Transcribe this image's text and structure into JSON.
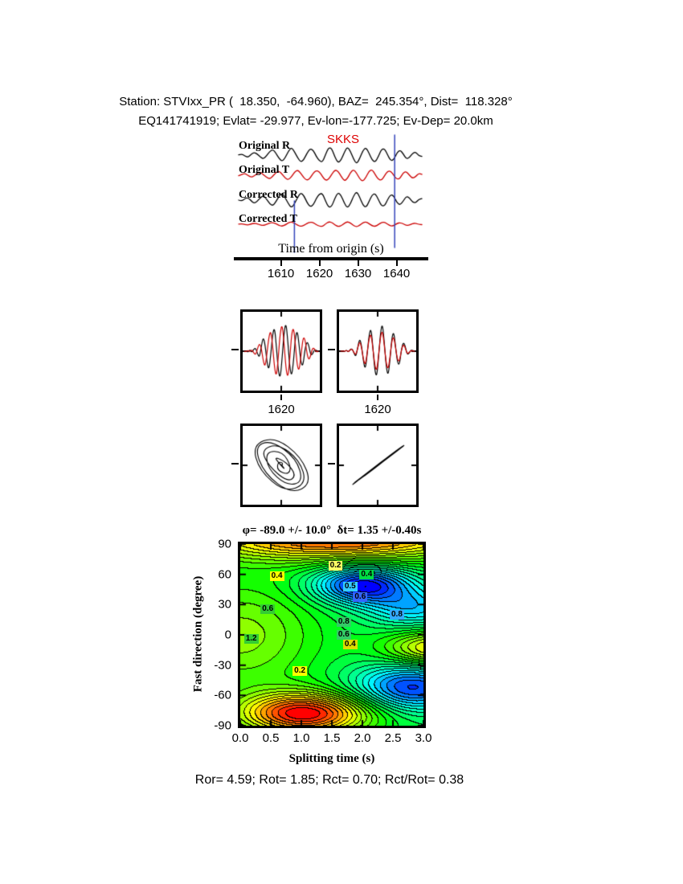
{
  "header": {
    "line1": "Station: STVIxx_PR (  18.350,  -64.960), BAZ=  245.354°, Dist=  118.328°",
    "line2": "EQ141741919; Evlat= -29.977, Ev-lon=-177.725; Ev-Dep= 20.0km"
  },
  "waveform_panel": {
    "phase_label": "SKKS",
    "trace_labels": [
      "Original R",
      "Original T",
      "Corrected R",
      "Corrected T"
    ],
    "xlabel": "Time from origin (s)",
    "xticks": [
      1610,
      1620,
      1630,
      1640
    ],
    "x_range": [
      1598,
      1648
    ],
    "window": [
      1613.5,
      1639.5
    ],
    "colors": {
      "r": "#000000",
      "t": "#cc0000",
      "window": "#3344bb"
    },
    "traces": {
      "original_r": [
        0.02,
        0.1,
        -0.06,
        -0.18,
        0.05,
        0.22,
        0.08,
        -0.15,
        -0.3,
        -0.05,
        0.28,
        0.45,
        0.15,
        -0.25,
        -0.5,
        -0.2,
        0.3,
        0.6,
        0.25,
        -0.2,
        -0.55,
        -0.35,
        0.15,
        0.5,
        0.4,
        -0.1,
        -0.45,
        -0.55,
        0.05,
        0.6,
        0.5,
        -0.15,
        -0.6,
        -0.4,
        0.2,
        0.65,
        0.3,
        -0.3,
        -0.7,
        -0.25,
        0.35,
        0.6,
        0.15,
        -0.4,
        -0.55,
        -0.1,
        0.45,
        0.5,
        0.0,
        -0.45,
        -0.35,
        0.2,
        0.4,
        0.1,
        -0.3,
        -0.2,
        0.15,
        0.25,
        -0.05,
        -0.1
      ],
      "original_t": [
        -0.05,
        0.08,
        0.18,
        -0.02,
        -0.2,
        -0.08,
        0.15,
        0.3,
        0.05,
        -0.22,
        -0.35,
        -0.1,
        0.25,
        0.4,
        0.1,
        -0.28,
        -0.45,
        -0.15,
        0.3,
        0.5,
        0.2,
        -0.25,
        -0.5,
        -0.3,
        0.2,
        0.45,
        0.35,
        -0.15,
        -0.5,
        -0.4,
        0.1,
        0.5,
        0.4,
        -0.1,
        -0.55,
        -0.35,
        0.25,
        0.55,
        0.2,
        -0.35,
        -0.6,
        -0.2,
        0.4,
        0.55,
        0.05,
        -0.4,
        -0.5,
        -0.05,
        0.4,
        0.4,
        -0.05,
        -0.4,
        -0.3,
        0.25,
        0.35,
        0.0,
        -0.3,
        -0.15,
        0.18,
        0.08
      ],
      "corrected_r": [
        0.0,
        -0.08,
        0.12,
        0.2,
        -0.05,
        -0.25,
        -0.1,
        0.2,
        0.35,
        0.08,
        -0.28,
        -0.45,
        -0.12,
        0.3,
        0.55,
        0.18,
        -0.28,
        -0.6,
        -0.28,
        0.22,
        0.58,
        0.35,
        -0.18,
        -0.52,
        -0.4,
        0.12,
        0.48,
        0.52,
        -0.08,
        -0.58,
        -0.48,
        0.15,
        0.6,
        0.38,
        -0.22,
        -0.62,
        -0.3,
        0.32,
        0.68,
        0.22,
        -0.38,
        -0.58,
        -0.12,
        0.42,
        0.52,
        0.05,
        -0.45,
        -0.45,
        0.05,
        0.45,
        0.32,
        -0.22,
        -0.38,
        -0.08,
        0.3,
        0.18,
        -0.15,
        -0.22,
        0.06,
        0.12
      ],
      "corrected_t": [
        0.02,
        0.06,
        -0.04,
        -0.1,
        0.03,
        0.12,
        0.05,
        -0.1,
        -0.16,
        -0.02,
        0.14,
        0.22,
        0.06,
        -0.14,
        -0.26,
        -0.08,
        0.16,
        0.3,
        0.12,
        -0.12,
        -0.28,
        -0.16,
        0.1,
        0.26,
        0.2,
        -0.06,
        -0.24,
        -0.28,
        0.04,
        0.3,
        0.24,
        -0.08,
        -0.3,
        -0.2,
        0.1,
        0.32,
        0.16,
        -0.16,
        -0.34,
        -0.12,
        0.18,
        0.3,
        0.08,
        -0.2,
        -0.28,
        -0.04,
        0.22,
        0.26,
        0.0,
        -0.22,
        -0.18,
        0.1,
        0.2,
        0.05,
        -0.16,
        -0.1,
        0.08,
        0.12,
        -0.02,
        -0.05
      ]
    }
  },
  "zoom_panels": [
    {
      "tick_label": "1620",
      "r": [
        0.0,
        0.02,
        -0.03,
        0.05,
        -0.04,
        0.06,
        0.1,
        -0.08,
        -0.2,
        0.15,
        0.45,
        0.2,
        -0.35,
        -0.6,
        -0.1,
        0.55,
        0.75,
        0.1,
        -0.65,
        -0.85,
        -0.2,
        0.6,
        0.9,
        0.3,
        -0.5,
        -0.8,
        -0.3,
        0.45,
        0.65,
        0.15,
        -0.4,
        -0.45,
        0.05,
        0.3,
        0.2,
        -0.12,
        -0.1,
        0.05,
        0.02,
        0.0
      ],
      "t": [
        0.0,
        -0.02,
        0.03,
        -0.02,
        0.05,
        -0.05,
        -0.12,
        0.08,
        0.25,
        0.1,
        -0.3,
        -0.5,
        -0.05,
        0.45,
        0.65,
        0.15,
        -0.55,
        -0.8,
        -0.15,
        0.6,
        0.85,
        0.25,
        -0.55,
        -0.85,
        -0.25,
        0.55,
        0.75,
        0.2,
        -0.5,
        -0.6,
        -0.1,
        0.42,
        0.4,
        -0.05,
        -0.28,
        -0.15,
        0.1,
        0.08,
        -0.03,
        0.0
      ]
    },
    {
      "tick_label": "1620",
      "r": [
        0.0,
        0.01,
        -0.02,
        0.04,
        -0.03,
        0.05,
        0.08,
        -0.06,
        -0.18,
        0.12,
        0.4,
        0.18,
        -0.32,
        -0.58,
        -0.08,
        0.52,
        0.72,
        0.12,
        -0.6,
        -0.82,
        -0.18,
        0.58,
        0.88,
        0.28,
        -0.48,
        -0.78,
        -0.28,
        0.42,
        0.62,
        0.12,
        -0.38,
        -0.42,
        0.04,
        0.28,
        0.18,
        -0.1,
        -0.08,
        0.04,
        0.02,
        0.0
      ],
      "t": [
        0.0,
        0.01,
        -0.01,
        0.03,
        -0.02,
        0.04,
        0.07,
        -0.05,
        -0.12,
        0.1,
        0.32,
        0.12,
        -0.26,
        -0.45,
        -0.04,
        0.4,
        0.56,
        0.08,
        -0.44,
        -0.64,
        -0.12,
        0.46,
        0.66,
        0.2,
        -0.38,
        -0.58,
        -0.2,
        0.34,
        0.46,
        0.08,
        -0.28,
        -0.32,
        0.02,
        0.22,
        0.12,
        -0.08,
        -0.05,
        0.02,
        0.01,
        0.0
      ]
    }
  ],
  "chart_data": {
    "type": "heatmap",
    "title": "φ= -89.0 +/- 10.0°  δt= 1.35 +/-0.40s",
    "xlabel": "Splitting time (s)",
    "ylabel": "Fast direction (degree)",
    "xlim": [
      0,
      3
    ],
    "ylim": [
      -90,
      90
    ],
    "xticks": [
      "0.0",
      "0.5",
      "1.0",
      "1.5",
      "2.0",
      "2.5",
      "3.0"
    ],
    "yticks": [
      90,
      60,
      30,
      0,
      -30,
      -60,
      -90
    ],
    "levels": 26,
    "phi_deg": -89.0,
    "phi_err_deg": 10.0,
    "dt_s": 1.35,
    "dt_err_s": 0.4,
    "surface_model": {
      "base": 1.0,
      "gaussians": [
        {
          "a": 3.2,
          "x": 1.6,
          "y": 97,
          "sx": 1.7,
          "sy": 16
        },
        {
          "a": 3.6,
          "x": 1.05,
          "y": -78,
          "sx": 0.75,
          "sy": 15
        },
        {
          "a": -2.8,
          "x": 2.0,
          "y": 50,
          "sx": 0.55,
          "sy": 13
        },
        {
          "a": -1.4,
          "x": 2.85,
          "y": 27,
          "sx": 0.55,
          "sy": 13
        },
        {
          "a": -2.4,
          "x": 2.8,
          "y": -52,
          "sx": 0.65,
          "sy": 16
        },
        {
          "a": 2.2,
          "x": 3.25,
          "y": -13,
          "sx": 0.6,
          "sy": 12
        },
        {
          "a": 1.3,
          "x": 0.0,
          "y": 0,
          "sx": 0.9,
          "sy": 40
        }
      ]
    },
    "contour_labels": [
      {
        "text": "0.2",
        "fx": 0.52,
        "fy": 0.12,
        "bg": "#ffff66"
      },
      {
        "text": "0.4",
        "fx": 0.2,
        "fy": 0.175,
        "bg": "#ffff00"
      },
      {
        "text": "0.4",
        "fx": 0.69,
        "fy": 0.17,
        "bg": "#00dd44"
      },
      {
        "text": "0.5",
        "fx": 0.6,
        "fy": 0.235,
        "bg": "#33ccff"
      },
      {
        "text": "0.6",
        "fx": 0.655,
        "fy": 0.29,
        "bg": "#3366ff"
      },
      {
        "text": "0.6",
        "fx": 0.15,
        "fy": 0.36,
        "bg": "#33cc33"
      },
      {
        "text": "0.8",
        "fx": 0.855,
        "fy": 0.39,
        "bg": "#33aaff"
      },
      {
        "text": "0.8",
        "fx": 0.565,
        "fy": 0.43,
        "bg": "#33cc66"
      },
      {
        "text": "1.2",
        "fx": 0.06,
        "fy": 0.52,
        "bg": "#33cc33"
      },
      {
        "text": "0.6",
        "fx": 0.565,
        "fy": 0.5,
        "bg": "#33cc66"
      },
      {
        "text": "0.4",
        "fx": 0.6,
        "fy": 0.555,
        "bg": "#dddd00"
      },
      {
        "text": "0.2",
        "fx": 0.325,
        "fy": 0.7,
        "bg": "#ffff00"
      }
    ]
  },
  "footer": {
    "stats": "Ror= 4.59; Rot= 1.85; Rct= 0.70; Rct/Rot= 0.38"
  }
}
